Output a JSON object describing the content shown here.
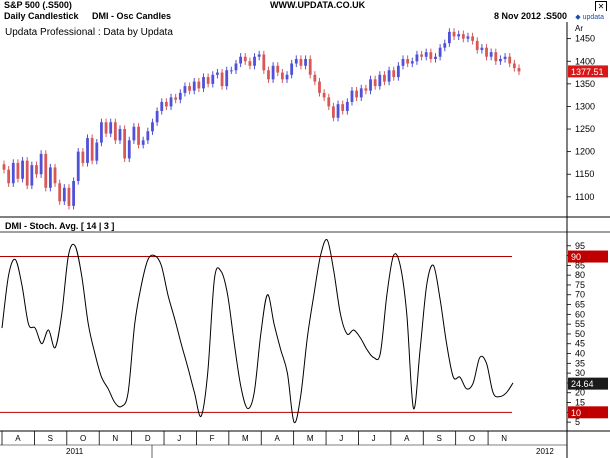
{
  "header": {
    "symbol": "S&P 500 (.S500)",
    "url": "WWW.UPDATA.CO.UK",
    "close_icon": "x-icon"
  },
  "subheader": {
    "chart_style": "Daily Candlestick",
    "study": "DMI - Osc Candles",
    "date_symbol": "8 Nov 2012  .S500",
    "logo": "updata"
  },
  "chart_data": [
    {
      "type": "candlestick",
      "annotation": "Updata Professional : Data by Updata",
      "scale_label": "Ar",
      "y_ticks": [
        1100,
        1150,
        1200,
        1250,
        1300,
        1350,
        1400,
        1450
      ],
      "ylim": [
        1062,
        1478
      ],
      "last_price_label": "1377.51",
      "last_price": 1377.51,
      "colors": {
        "up": "#5050d8",
        "down": "#d85858"
      },
      "series": [
        {
          "name": "close",
          "values": [
            1160,
            1130,
            1175,
            1140,
            1180,
            1125,
            1170,
            1150,
            1195,
            1120,
            1165,
            1130,
            1090,
            1120,
            1080,
            1135,
            1200,
            1175,
            1230,
            1180,
            1220,
            1265,
            1240,
            1265,
            1225,
            1250,
            1185,
            1225,
            1255,
            1215,
            1225,
            1245,
            1265,
            1290,
            1310,
            1300,
            1320,
            1315,
            1330,
            1345,
            1335,
            1355,
            1340,
            1365,
            1350,
            1370,
            1375,
            1345,
            1380,
            1380,
            1395,
            1410,
            1400,
            1390,
            1410,
            1415,
            1380,
            1360,
            1390,
            1375,
            1360,
            1370,
            1395,
            1405,
            1390,
            1405,
            1370,
            1355,
            1330,
            1320,
            1300,
            1275,
            1305,
            1290,
            1310,
            1335,
            1320,
            1340,
            1335,
            1360,
            1345,
            1370,
            1355,
            1380,
            1365,
            1390,
            1405,
            1395,
            1400,
            1415,
            1410,
            1420,
            1405,
            1410,
            1430,
            1440,
            1465,
            1455,
            1460,
            1450,
            1455,
            1445,
            1425,
            1430,
            1410,
            1420,
            1400,
            1405,
            1410,
            1395,
            1385,
            1377.51
          ]
        }
      ]
    },
    {
      "type": "line",
      "title": "DMI - Stoch. Avg. [ 14 | 3 ]",
      "ylim": [
        2,
        101
      ],
      "y_ticks": [
        5,
        10,
        15,
        20,
        25,
        30,
        35,
        40,
        45,
        50,
        55,
        60,
        65,
        70,
        75,
        80,
        85,
        90,
        95
      ],
      "upper_level": 89.5,
      "lower_level": 10,
      "upper_label": "90",
      "lower_label": "10",
      "last_value_label": "24.64",
      "last_value": 24.64,
      "line_color": "#000000",
      "level_color": "#b00000",
      "series": [
        {
          "name": "DMI Stoch Avg",
          "values": [
            53,
            80,
            88,
            75,
            55,
            53,
            45,
            52,
            43,
            60,
            90,
            95,
            80,
            55,
            40,
            28,
            22,
            15,
            13,
            20,
            55,
            75,
            88,
            90,
            85,
            70,
            58,
            45,
            33,
            20,
            8,
            30,
            78,
            82,
            70,
            45,
            23,
            12,
            20,
            50,
            70,
            55,
            42,
            30,
            5,
            18,
            48,
            70,
            90,
            98,
            82,
            60,
            50,
            52,
            48,
            42,
            38,
            40,
            70,
            90,
            85,
            60,
            12,
            42,
            75,
            85,
            68,
            45,
            28,
            28,
            22,
            25,
            38,
            35,
            20,
            18,
            20,
            25
          ]
        }
      ],
      "x_axis": {
        "months": [
          "A",
          "S",
          "O",
          "N",
          "D",
          "J",
          "F",
          "M",
          "A",
          "M",
          "J",
          "J",
          "A",
          "S",
          "O",
          "N"
        ],
        "years": [
          "2011",
          "2012"
        ]
      }
    }
  ]
}
